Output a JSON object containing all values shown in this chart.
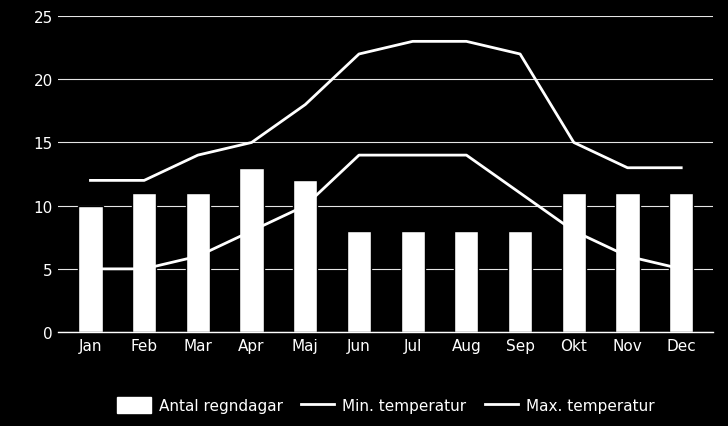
{
  "months": [
    "Jan",
    "Feb",
    "Mar",
    "Apr",
    "Maj",
    "Jun",
    "Jul",
    "Aug",
    "Sep",
    "Okt",
    "Nov",
    "Dec"
  ],
  "rain_days": [
    10,
    11,
    11,
    13,
    12,
    8,
    8,
    8,
    8,
    11,
    11,
    11
  ],
  "min_temp": [
    5,
    5,
    6,
    8,
    10,
    14,
    14,
    14,
    11,
    8,
    6,
    5
  ],
  "max_temp": [
    12,
    12,
    14,
    15,
    18,
    22,
    23,
    23,
    22,
    15,
    13,
    13
  ],
  "background_color": "#000000",
  "bar_color": "#ffffff",
  "line_color": "#ffffff",
  "text_color": "#ffffff",
  "grid_color": "#ffffff",
  "ylim": [
    0,
    25
  ],
  "yticks": [
    0,
    5,
    10,
    15,
    20,
    25
  ],
  "bar_width": 0.45,
  "legend_labels": [
    "Antal regndagar",
    "Min. temperatur",
    "Max. temperatur"
  ]
}
